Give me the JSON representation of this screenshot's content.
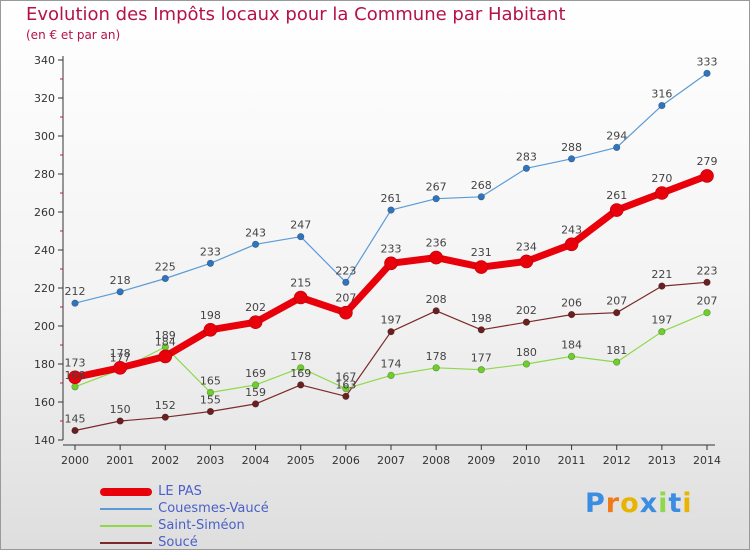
{
  "title": "Evolution des Impôts locaux pour la Commune par Habitant",
  "subtitle": "(en € et par an)",
  "logo": "Proxiti",
  "chart_data": {
    "type": "line",
    "title": "Evolution des Impôts locaux pour la Commune par Habitant",
    "subtitle": "(en € et par an)",
    "xlabel": "",
    "ylabel": "",
    "x": [
      "2000",
      "2001",
      "2002",
      "2003",
      "2004",
      "2005",
      "2006",
      "2007",
      "2008",
      "2009",
      "2010",
      "2011",
      "2012",
      "2013",
      "2014"
    ],
    "ylim": [
      140,
      340
    ],
    "yticks": [
      140,
      160,
      180,
      200,
      220,
      240,
      260,
      280,
      300,
      320,
      340
    ],
    "grid": false,
    "legend_position": "bottom-left",
    "series": [
      {
        "name": "LE PAS",
        "color": "#e8000b",
        "values": [
          173,
          178,
          184,
          198,
          202,
          215,
          207,
          233,
          236,
          231,
          234,
          243,
          261,
          270,
          279
        ]
      },
      {
        "name": "Couesmes-Vaucé",
        "color": "#5b9bd5",
        "values": [
          212,
          218,
          225,
          233,
          243,
          247,
          223,
          261,
          267,
          268,
          283,
          288,
          294,
          316,
          333
        ]
      },
      {
        "name": "Saint-Siméon",
        "color": "#8ed94a",
        "values": [
          168,
          177,
          189,
          165,
          169,
          178,
          167,
          174,
          178,
          177,
          180,
          184,
          181,
          197,
          207
        ]
      },
      {
        "name": "Soucé",
        "color": "#7b2a2a",
        "values": [
          145,
          150,
          152,
          155,
          159,
          169,
          163,
          197,
          208,
          198,
          202,
          206,
          207,
          221,
          223
        ]
      }
    ]
  }
}
